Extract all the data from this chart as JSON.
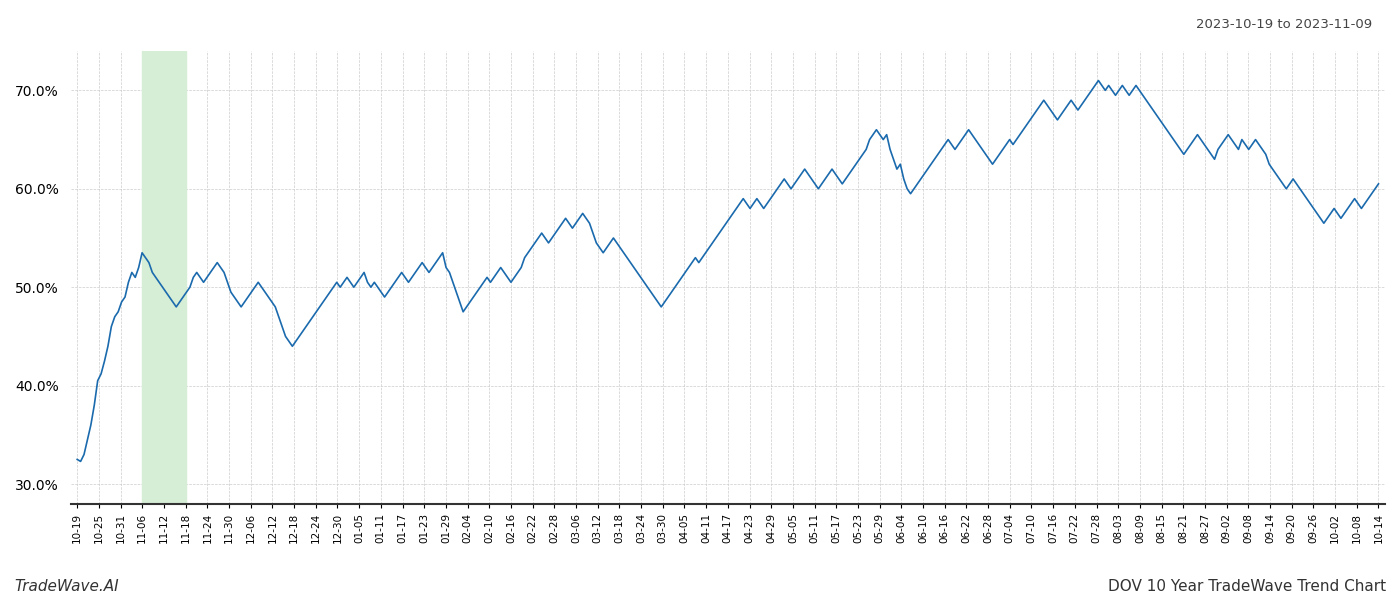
{
  "title_top_right": "2023-10-19 to 2023-11-09",
  "footer_left": "TradeWave.AI",
  "footer_right": "DOV 10 Year TradeWave Trend Chart",
  "line_color": "#1a6aad",
  "line_width": 1.2,
  "background_color": "#ffffff",
  "grid_color": "#cccccc",
  "grid_style": "--",
  "shade_color": "#d6edd6",
  "ylim": [
    28.0,
    74.0
  ],
  "yticks": [
    30.0,
    40.0,
    50.0,
    60.0,
    70.0
  ],
  "x_labels": [
    "10-19",
    "10-25",
    "10-31",
    "11-06",
    "11-12",
    "11-18",
    "11-24",
    "11-30",
    "12-06",
    "12-12",
    "12-18",
    "12-24",
    "12-30",
    "01-05",
    "01-11",
    "01-17",
    "01-23",
    "01-29",
    "02-04",
    "02-10",
    "02-16",
    "02-22",
    "02-28",
    "03-06",
    "03-12",
    "03-18",
    "03-24",
    "03-30",
    "04-05",
    "04-11",
    "04-17",
    "04-23",
    "04-29",
    "05-05",
    "05-11",
    "05-17",
    "05-23",
    "05-29",
    "06-04",
    "06-10",
    "06-16",
    "06-22",
    "06-28",
    "07-04",
    "07-10",
    "07-16",
    "07-22",
    "07-28",
    "08-03",
    "08-09",
    "08-15",
    "08-21",
    "08-27",
    "09-02",
    "09-08",
    "09-14",
    "09-20",
    "09-26",
    "10-02",
    "10-08",
    "10-14"
  ],
  "shade_label_start": "11-06",
  "shade_label_end": "11-18",
  "values": [
    32.5,
    32.3,
    33.0,
    34.5,
    36.0,
    38.0,
    40.5,
    41.2,
    42.5,
    44.0,
    46.0,
    47.0,
    47.5,
    48.5,
    49.0,
    50.5,
    51.5,
    51.0,
    52.0,
    53.5,
    53.0,
    52.5,
    51.5,
    51.0,
    50.5,
    50.0,
    49.5,
    49.0,
    48.5,
    48.0,
    48.5,
    49.0,
    49.5,
    50.0,
    51.0,
    51.5,
    51.0,
    50.5,
    51.0,
    51.5,
    52.0,
    52.5,
    52.0,
    51.5,
    50.5,
    49.5,
    49.0,
    48.5,
    48.0,
    48.5,
    49.0,
    49.5,
    50.0,
    50.5,
    50.0,
    49.5,
    49.0,
    48.5,
    48.0,
    47.0,
    46.0,
    45.0,
    44.5,
    44.0,
    44.5,
    45.0,
    45.5,
    46.0,
    46.5,
    47.0,
    47.5,
    48.0,
    48.5,
    49.0,
    49.5,
    50.0,
    50.5,
    50.0,
    50.5,
    51.0,
    50.5,
    50.0,
    50.5,
    51.0,
    51.5,
    50.5,
    50.0,
    50.5,
    50.0,
    49.5,
    49.0,
    49.5,
    50.0,
    50.5,
    51.0,
    51.5,
    51.0,
    50.5,
    51.0,
    51.5,
    52.0,
    52.5,
    52.0,
    51.5,
    52.0,
    52.5,
    53.0,
    53.5,
    52.0,
    51.5,
    50.5,
    49.5,
    48.5,
    47.5,
    48.0,
    48.5,
    49.0,
    49.5,
    50.0,
    50.5,
    51.0,
    50.5,
    51.0,
    51.5,
    52.0,
    51.5,
    51.0,
    50.5,
    51.0,
    51.5,
    52.0,
    53.0,
    53.5,
    54.0,
    54.5,
    55.0,
    55.5,
    55.0,
    54.5,
    55.0,
    55.5,
    56.0,
    56.5,
    57.0,
    56.5,
    56.0,
    56.5,
    57.0,
    57.5,
    57.0,
    56.5,
    55.5,
    54.5,
    54.0,
    53.5,
    54.0,
    54.5,
    55.0,
    54.5,
    54.0,
    53.5,
    53.0,
    52.5,
    52.0,
    51.5,
    51.0,
    50.5,
    50.0,
    49.5,
    49.0,
    48.5,
    48.0,
    48.5,
    49.0,
    49.5,
    50.0,
    50.5,
    51.0,
    51.5,
    52.0,
    52.5,
    53.0,
    52.5,
    53.0,
    53.5,
    54.0,
    54.5,
    55.0,
    55.5,
    56.0,
    56.5,
    57.0,
    57.5,
    58.0,
    58.5,
    59.0,
    58.5,
    58.0,
    58.5,
    59.0,
    58.5,
    58.0,
    58.5,
    59.0,
    59.5,
    60.0,
    60.5,
    61.0,
    60.5,
    60.0,
    60.5,
    61.0,
    61.5,
    62.0,
    61.5,
    61.0,
    60.5,
    60.0,
    60.5,
    61.0,
    61.5,
    62.0,
    61.5,
    61.0,
    60.5,
    61.0,
    61.5,
    62.0,
    62.5,
    63.0,
    63.5,
    64.0,
    65.0,
    65.5,
    66.0,
    65.5,
    65.0,
    65.5,
    64.0,
    63.0,
    62.0,
    62.5,
    61.0,
    60.0,
    59.5,
    60.0,
    60.5,
    61.0,
    61.5,
    62.0,
    62.5,
    63.0,
    63.5,
    64.0,
    64.5,
    65.0,
    64.5,
    64.0,
    64.5,
    65.0,
    65.5,
    66.0,
    65.5,
    65.0,
    64.5,
    64.0,
    63.5,
    63.0,
    62.5,
    63.0,
    63.5,
    64.0,
    64.5,
    65.0,
    64.5,
    65.0,
    65.5,
    66.0,
    66.5,
    67.0,
    67.5,
    68.0,
    68.5,
    69.0,
    68.5,
    68.0,
    67.5,
    67.0,
    67.5,
    68.0,
    68.5,
    69.0,
    68.5,
    68.0,
    68.5,
    69.0,
    69.5,
    70.0,
    70.5,
    71.0,
    70.5,
    70.0,
    70.5,
    70.0,
    69.5,
    70.0,
    70.5,
    70.0,
    69.5,
    70.0,
    70.5,
    70.0,
    69.5,
    69.0,
    68.5,
    68.0,
    67.5,
    67.0,
    66.5,
    66.0,
    65.5,
    65.0,
    64.5,
    64.0,
    63.5,
    64.0,
    64.5,
    65.0,
    65.5,
    65.0,
    64.5,
    64.0,
    63.5,
    63.0,
    64.0,
    64.5,
    65.0,
    65.5,
    65.0,
    64.5,
    64.0,
    65.0,
    64.5,
    64.0,
    64.5,
    65.0,
    64.5,
    64.0,
    63.5,
    62.5,
    62.0,
    61.5,
    61.0,
    60.5,
    60.0,
    60.5,
    61.0,
    60.5,
    60.0,
    59.5,
    59.0,
    58.5,
    58.0,
    57.5,
    57.0,
    56.5,
    57.0,
    57.5,
    58.0,
    57.5,
    57.0,
    57.5,
    58.0,
    58.5,
    59.0,
    58.5,
    58.0,
    58.5,
    59.0,
    59.5,
    60.0,
    60.5
  ]
}
